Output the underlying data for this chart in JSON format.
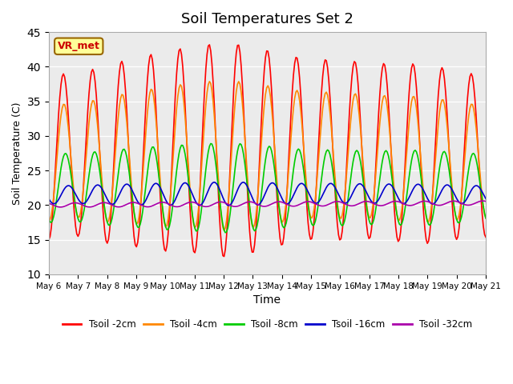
{
  "title": "Soil Temperatures Set 2",
  "xlabel": "Time",
  "ylabel": "Soil Temperature (C)",
  "ylim": [
    10,
    45
  ],
  "yticks": [
    10,
    15,
    20,
    25,
    30,
    35,
    40,
    45
  ],
  "date_labels": [
    "May 6",
    "May 7",
    "May 8",
    "May 9",
    "May 10",
    "May 11",
    "May 12",
    "May 13",
    "May 14",
    "May 15",
    "May 16",
    "May 17",
    "May 18",
    "May 19",
    "May 20",
    "May 21"
  ],
  "n_days": 15,
  "annotation_text": "VR_met",
  "annotation_color": "#cc0000",
  "annotation_bg": "#ffff99",
  "annotation_border": "#996600",
  "colors": {
    "Tsoil -2cm": "#ff0000",
    "Tsoil -4cm": "#ff8800",
    "Tsoil -8cm": "#00cc00",
    "Tsoil -16cm": "#0000cc",
    "Tsoil -32cm": "#aa00aa"
  },
  "plot_bg": "#ebebeb"
}
